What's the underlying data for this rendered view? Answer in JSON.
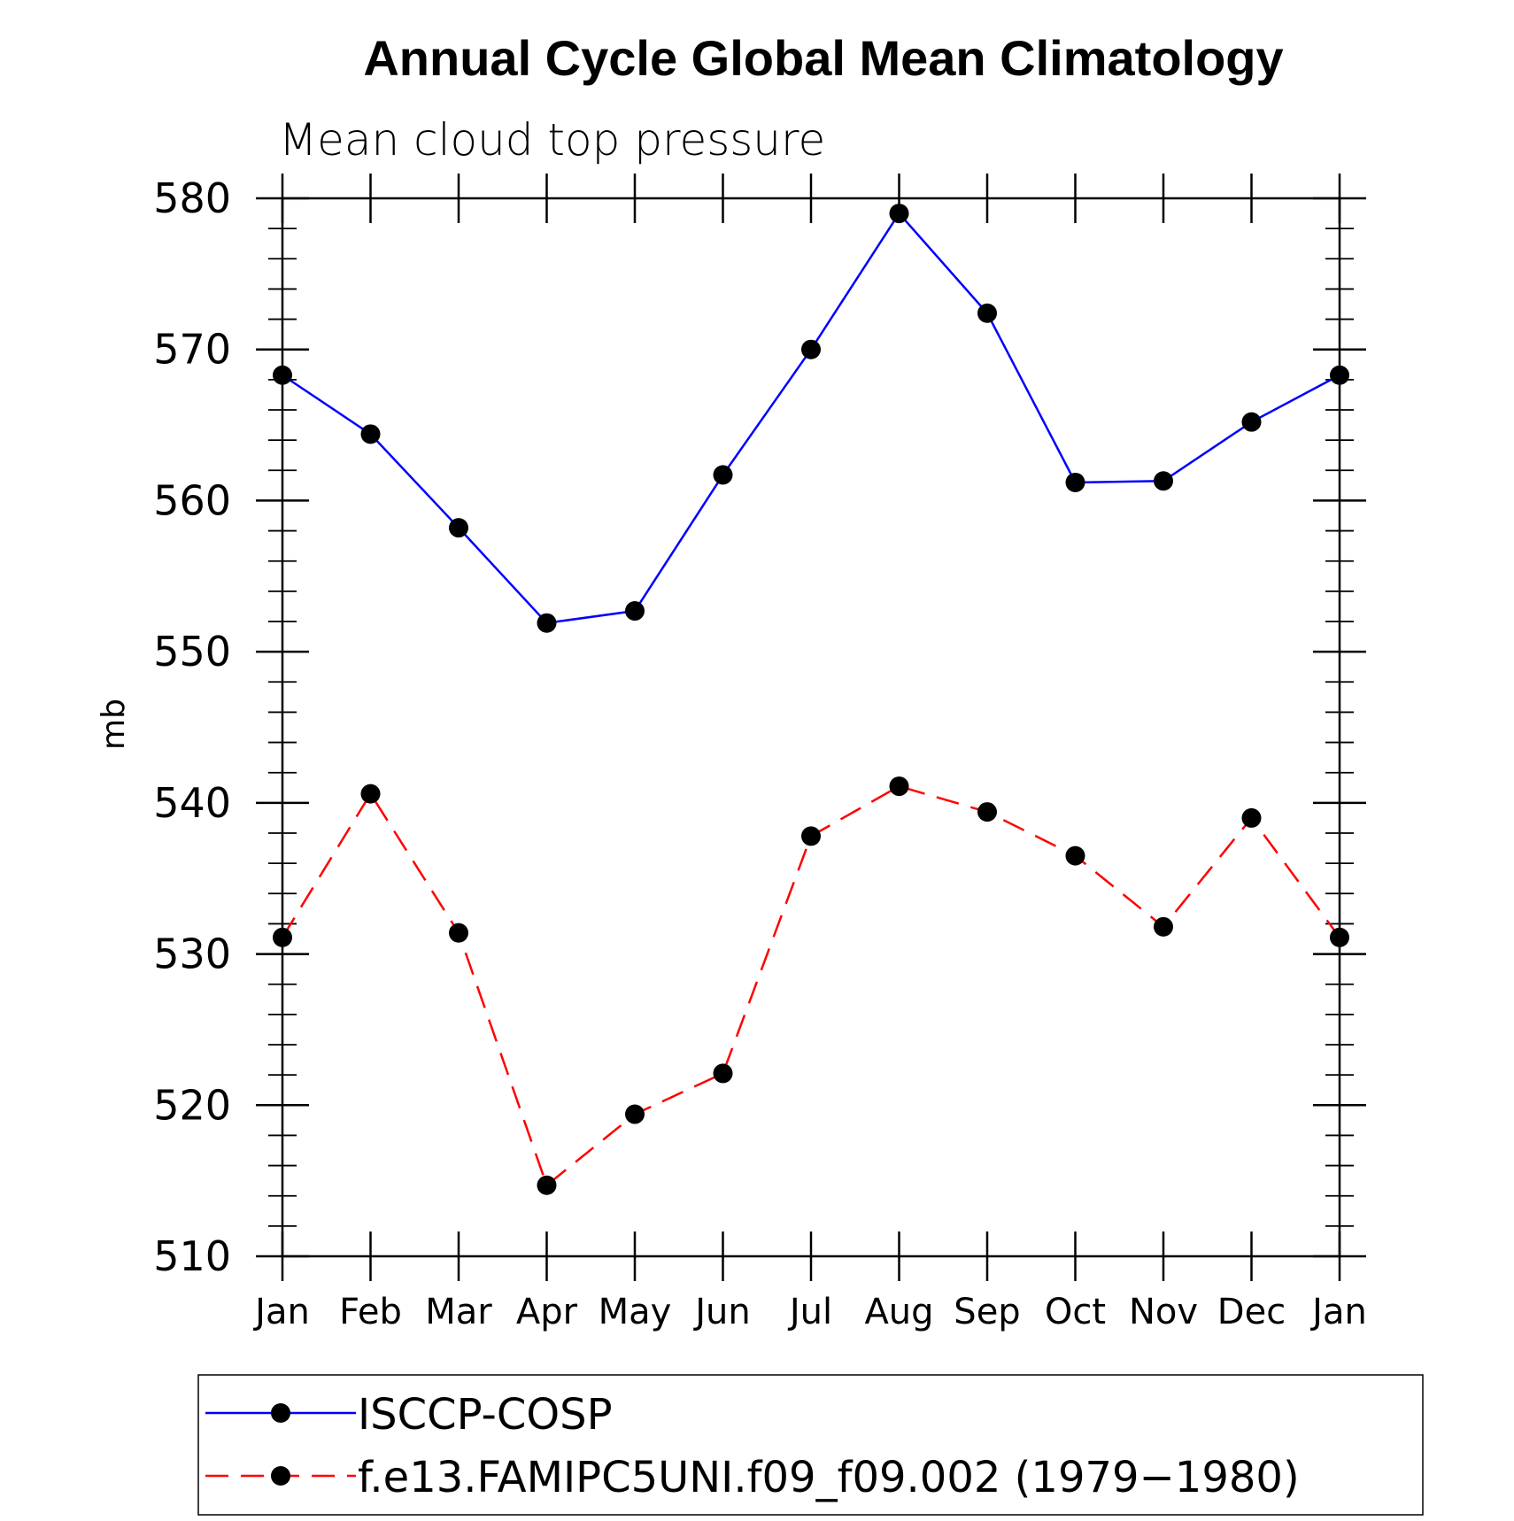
{
  "chart_data": {
    "type": "line",
    "title": "Annual Cycle Global Mean Climatology",
    "subtitle": "Mean cloud top pressure",
    "xlabel": "",
    "ylabel": "mb",
    "ylim": [
      510,
      580
    ],
    "yticks": [
      510,
      520,
      530,
      540,
      550,
      560,
      570,
      580
    ],
    "categories": [
      "Jan",
      "Feb",
      "Mar",
      "Apr",
      "May",
      "Jun",
      "Jul",
      "Aug",
      "Sep",
      "Oct",
      "Nov",
      "Dec",
      "Jan"
    ],
    "grid": false,
    "legend_position": "bottom",
    "series": [
      {
        "name": "ISCCP-COSP",
        "color": "#0000ff",
        "dash": "solid",
        "marker": "circle",
        "values": [
          568.3,
          564.4,
          558.2,
          551.9,
          552.7,
          561.7,
          570.0,
          579.0,
          572.4,
          561.2,
          561.3,
          565.2,
          568.3
        ]
      },
      {
        "name": "f.e13.FAMIPC5UNI.f09_f09.002 (1979−1980)",
        "color": "#ff0000",
        "dash": "dashed",
        "marker": "circle",
        "values": [
          531.1,
          540.6,
          531.4,
          514.7,
          519.4,
          522.1,
          537.8,
          541.1,
          539.4,
          536.5,
          531.8,
          539.0,
          531.1
        ]
      }
    ]
  }
}
